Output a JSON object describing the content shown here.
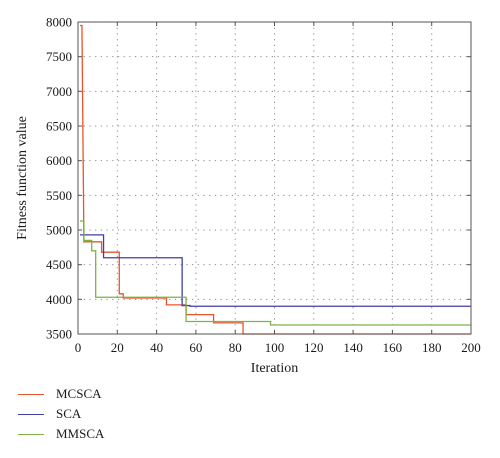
{
  "chart_data": {
    "type": "line",
    "title": "",
    "xlabel": "Iteration",
    "ylabel": "Fitness function value",
    "xlim": [
      0,
      200
    ],
    "ylim": [
      3500,
      8000
    ],
    "xticks": [
      0,
      20,
      40,
      60,
      80,
      100,
      120,
      140,
      160,
      180,
      200
    ],
    "yticks": [
      3500,
      4000,
      4500,
      5000,
      5500,
      6000,
      6500,
      7000,
      7500,
      8000
    ],
    "grid": true,
    "legend_position": "below-left",
    "series": [
      {
        "name": "MCSCA",
        "color": "#e8542b",
        "x": [
          1,
          2,
          3,
          3,
          12,
          12,
          21,
          21,
          23,
          23,
          45,
          45,
          55,
          55,
          69,
          69,
          84,
          84,
          200
        ],
        "y": [
          7950,
          7950,
          4870,
          4830,
          4830,
          4680,
          4680,
          4080,
          4080,
          4020,
          4020,
          3920,
          3920,
          3780,
          3780,
          3660,
          3660,
          3500,
          3500
        ]
      },
      {
        "name": "SCA",
        "color": "#3f3fa8",
        "x": [
          1,
          13,
          13,
          53,
          53,
          57,
          57,
          200
        ],
        "y": [
          4930,
          4930,
          4600,
          4600,
          3910,
          3910,
          3900,
          3900
        ]
      },
      {
        "name": "MMSCA",
        "color": "#7cb342",
        "x": [
          1,
          3,
          3,
          7,
          7,
          9,
          9,
          55,
          55,
          59,
          59,
          98,
          98,
          200
        ],
        "y": [
          5130,
          5130,
          4850,
          4850,
          4700,
          4700,
          4030,
          4030,
          3680,
          3680,
          3680,
          3680,
          3630,
          3630
        ]
      }
    ]
  }
}
